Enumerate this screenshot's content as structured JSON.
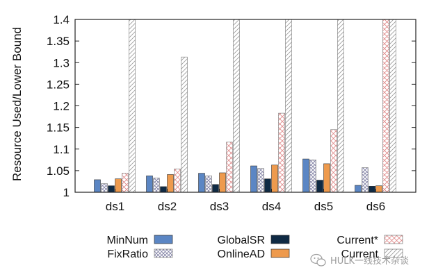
{
  "watermark": {
    "text": "HULK一线技术杂谈",
    "icon": "wechat-icon"
  },
  "chart_data": {
    "type": "bar",
    "ylabel": "Resource Used/Lower Bound",
    "xlabel": "",
    "ylim": [
      1,
      1.4
    ],
    "yticks": [
      "1",
      "1.05",
      "1.1",
      "1.15",
      "1.2",
      "1.25",
      "1.3",
      "1.35",
      "1.4"
    ],
    "grid": false,
    "legend_position": "bottom",
    "categories": [
      "ds1",
      "ds2",
      "ds3",
      "ds4",
      "ds5",
      "ds6"
    ],
    "series": [
      {
        "name": "MinNum",
        "color": "#5b86c4",
        "pattern": "solid",
        "values": [
          1.029,
          1.038,
          1.044,
          1.061,
          1.077,
          1.016
        ]
      },
      {
        "name": "FixRatio",
        "color": "#8888a8",
        "pattern": "checker",
        "values": [
          1.02,
          1.033,
          1.038,
          1.055,
          1.075,
          1.057
        ]
      },
      {
        "name": "GlobalSR",
        "color": "#0f2a44",
        "pattern": "solid",
        "values": [
          1.015,
          1.013,
          1.018,
          1.031,
          1.028,
          1.014
        ]
      },
      {
        "name": "OnlineAD",
        "color": "#ee9a4d",
        "pattern": "solid",
        "values": [
          1.031,
          1.041,
          1.045,
          1.063,
          1.066,
          1.015
        ]
      },
      {
        "name": "Current*",
        "color": "#e79a9a",
        "pattern": "crosshatch",
        "values": [
          1.044,
          1.054,
          1.116,
          1.183,
          1.145,
          1.4
        ]
      },
      {
        "name": "Current",
        "color": "#9a9a9a",
        "pattern": "diagonal",
        "values": [
          1.4,
          1.313,
          1.4,
          1.4,
          1.4,
          1.4
        ]
      }
    ]
  }
}
